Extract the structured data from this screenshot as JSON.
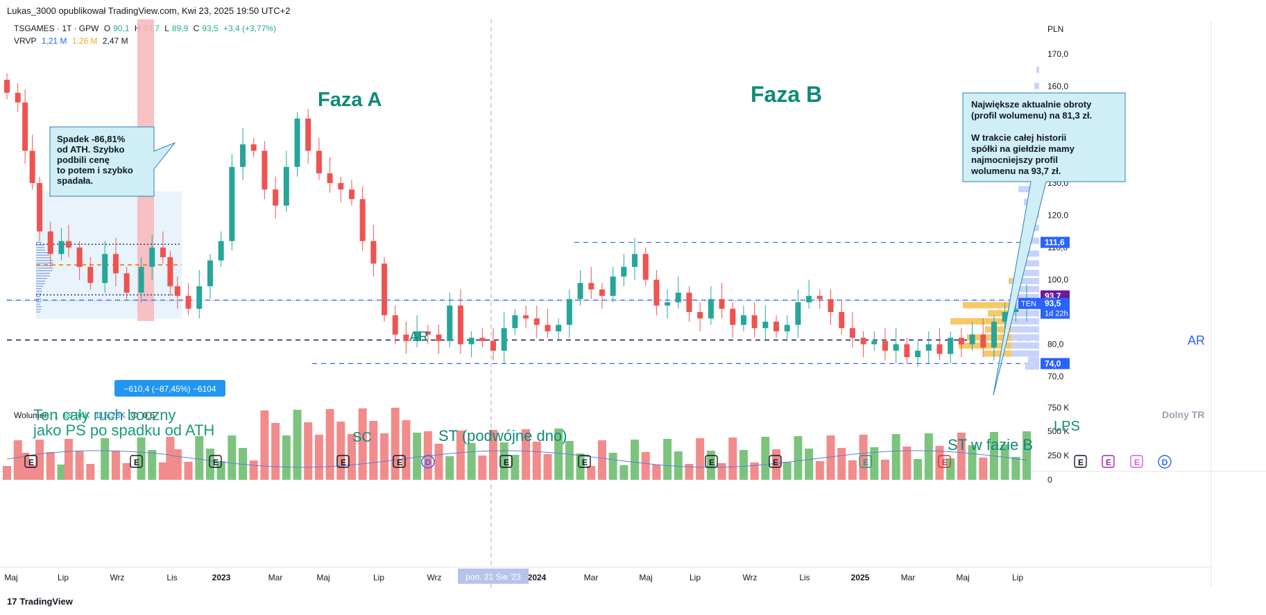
{
  "header": {
    "publisher_line": "Lukas_3000 opublikował TradingView.com, Kwi 23, 2025 19:50 UTC+2"
  },
  "legend": {
    "symbol": "TSGAMES · 1T · GPW",
    "o_label": "O",
    "o_value": "90,1",
    "h_label": "H",
    "h_value": "93,7",
    "l_label": "L",
    "l_value": "89,9",
    "c_label": "C",
    "c_value": "93,5",
    "change": "+3,4 (+3,77%)",
    "vrvp_label": "VRVP",
    "vrvp_1": "1,21 M",
    "vrvp_2": "1,26 M",
    "vrvp_3": "2,47 M",
    "volume_label": "Wolumen",
    "volume_1": "1",
    "volume_2": "68,34K",
    "volume_3": "115,28K",
    "volume_4": "∅",
    "volume_5": "0,6"
  },
  "footer": {
    "logo": "17",
    "brand": "TradingView"
  },
  "colors": {
    "up": "#26a69a",
    "down": "#ef5350",
    "vol_up": "#7cc47e",
    "vol_down": "#f28b8b",
    "phase_text": "#0f8a78",
    "dashed_blue": "#2962ff",
    "dashed_navy": "#1a237e"
  },
  "chart_data": {
    "type": "candlestick",
    "currency": "PLN",
    "price_axis": {
      "min": 70,
      "max": 170,
      "ticks": [
        "70,0",
        "80,0",
        "90,0",
        "100,0",
        "110,0",
        "120,0",
        "130,0",
        "140,0",
        "150,0",
        "160,0",
        "170,0"
      ]
    },
    "volume_axis": {
      "ticks": [
        "0",
        "250 K",
        "500 K",
        "750 K"
      ]
    },
    "time_axis": [
      "Maj",
      "Lip",
      "Wrz",
      "Lis",
      "2023",
      "Mar",
      "Maj",
      "Lip",
      "Wrz",
      "Lis",
      "2024",
      "Mar",
      "Maj",
      "Lip",
      "Wrz",
      "Lis",
      "2025",
      "Mar",
      "Maj",
      "Lip"
    ],
    "time_cursor_label": "pon. 21 Sie '23",
    "price_badges": [
      {
        "label": "111,6",
        "value": 111.6,
        "color": "#2962ff"
      },
      {
        "label": "93,7",
        "value": 93.7,
        "color": "#6a1b9a"
      },
      {
        "label": "93,5",
        "value": 93.5,
        "sub": "1d 22h",
        "prefix": "TEN",
        "color": "#2962ff"
      },
      {
        "label": "74,0",
        "value": 74.0,
        "color": "#2962ff"
      }
    ],
    "levels": [
      {
        "value": 111.6,
        "style": "dashed-blue"
      },
      {
        "value": 93.7,
        "style": "dashed-blue"
      },
      {
        "value": 81.3,
        "style": "dashed-navy"
      },
      {
        "value": 74.0,
        "style": "dashed-blue"
      }
    ],
    "annotations": {
      "faza_a": "Faza A",
      "faza_b": "Faza B",
      "ar_left": "AR",
      "ar_right": "AR",
      "sc": "SC",
      "st_double": "ST (podwójne dno)",
      "st_phase_b": "ST w fazie B",
      "lps": "LPS",
      "dolny_tr": "Dolny TR",
      "ps_line1": "Ten cały ruch boczny",
      "ps_line2": "jako PS po spadku od ATH",
      "drop_box": [
        "Spadek -86,81%",
        "od ATH. Szybko",
        "podbili cenę",
        "to potem i szybko",
        "spadała."
      ],
      "measure_label": "−610,4 (−87,45%) −6104",
      "info_box": [
        "Największe aktualnie obroty",
        "(profil wolumenu) na 81,3 zł.",
        "",
        "W trakcie całej historii",
        "spółki na giełdzie mamy",
        "najmocniejszy profil",
        "wolumenu na 93,7 zł."
      ]
    },
    "event_markers": [
      "E",
      "E",
      "E",
      "E",
      "E",
      "D",
      "E",
      "E",
      "E",
      "E",
      "E",
      "E",
      "E",
      "E",
      "E",
      "D"
    ],
    "weekly_close_path": [
      [
        2022.33,
        158
      ],
      [
        2022.36,
        155
      ],
      [
        2022.38,
        140
      ],
      [
        2022.4,
        130
      ],
      [
        2022.42,
        115
      ],
      [
        2022.45,
        108
      ],
      [
        2022.48,
        112
      ],
      [
        2022.5,
        110
      ],
      [
        2022.53,
        104
      ],
      [
        2022.56,
        99
      ],
      [
        2022.6,
        108
      ],
      [
        2022.63,
        102
      ],
      [
        2022.66,
        96
      ],
      [
        2022.7,
        104
      ],
      [
        2022.73,
        110
      ],
      [
        2022.76,
        107
      ],
      [
        2022.78,
        98
      ],
      [
        2022.8,
        95
      ],
      [
        2022.83,
        91
      ],
      [
        2022.86,
        98
      ],
      [
        2022.89,
        106
      ],
      [
        2022.92,
        112
      ],
      [
        2022.95,
        135
      ],
      [
        2022.98,
        142
      ],
      [
        2023.01,
        140
      ],
      [
        2023.04,
        128
      ],
      [
        2023.07,
        123
      ],
      [
        2023.1,
        135
      ],
      [
        2023.13,
        150
      ],
      [
        2023.16,
        140
      ],
      [
        2023.19,
        133
      ],
      [
        2023.22,
        130
      ],
      [
        2023.25,
        128
      ],
      [
        2023.28,
        125
      ],
      [
        2023.31,
        112
      ],
      [
        2023.34,
        105
      ],
      [
        2023.37,
        89
      ],
      [
        2023.4,
        83
      ],
      [
        2023.43,
        81
      ],
      [
        2023.46,
        84
      ],
      [
        2023.49,
        83
      ],
      [
        2023.52,
        81
      ],
      [
        2023.55,
        92
      ],
      [
        2023.58,
        80
      ],
      [
        2023.61,
        82
      ],
      [
        2023.64,
        81
      ],
      [
        2023.67,
        78
      ],
      [
        2023.7,
        85
      ],
      [
        2023.73,
        89
      ],
      [
        2023.76,
        88
      ],
      [
        2023.79,
        86
      ],
      [
        2023.82,
        84
      ],
      [
        2023.85,
        86
      ],
      [
        2023.88,
        94
      ],
      [
        2023.91,
        99
      ],
      [
        2023.94,
        97
      ],
      [
        2023.97,
        95
      ],
      [
        2024.0,
        101
      ],
      [
        2024.03,
        104
      ],
      [
        2024.06,
        108
      ],
      [
        2024.09,
        100
      ],
      [
        2024.12,
        92
      ],
      [
        2024.15,
        93
      ],
      [
        2024.18,
        96
      ],
      [
        2024.21,
        90
      ],
      [
        2024.24,
        88
      ],
      [
        2024.27,
        94
      ],
      [
        2024.3,
        91
      ],
      [
        2024.33,
        86
      ],
      [
        2024.36,
        89
      ],
      [
        2024.39,
        85
      ],
      [
        2024.42,
        87
      ],
      [
        2024.45,
        84
      ],
      [
        2024.48,
        86
      ],
      [
        2024.51,
        93
      ],
      [
        2024.54,
        95
      ],
      [
        2024.57,
        94
      ],
      [
        2024.6,
        90
      ],
      [
        2024.63,
        85
      ],
      [
        2024.66,
        82
      ],
      [
        2024.69,
        80
      ],
      [
        2024.72,
        81
      ],
      [
        2024.75,
        78
      ],
      [
        2024.78,
        80
      ],
      [
        2024.81,
        76
      ],
      [
        2024.84,
        78
      ],
      [
        2024.87,
        80
      ],
      [
        2024.9,
        77
      ],
      [
        2024.93,
        82
      ],
      [
        2024.96,
        80
      ],
      [
        2024.99,
        83
      ],
      [
        2025.02,
        79
      ],
      [
        2025.05,
        87
      ],
      [
        2025.08,
        90
      ],
      [
        2025.11,
        91
      ],
      [
        2025.14,
        93.5
      ]
    ]
  }
}
